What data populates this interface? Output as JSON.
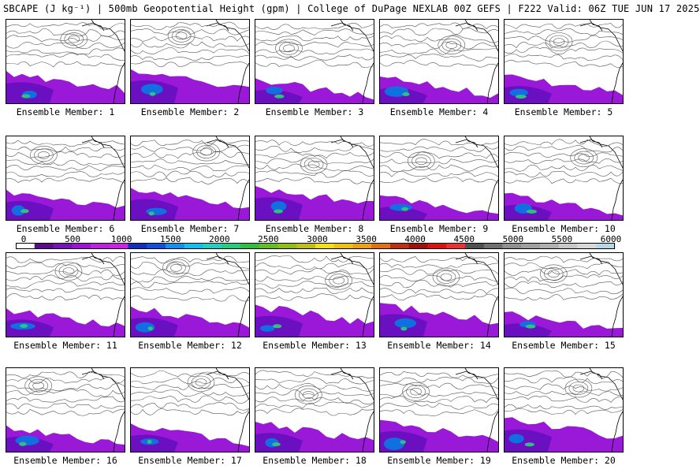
{
  "title": "SBCAPE (J kg⁻¹) | 500mb Geopotential Height (gpm) | College of DuPage NEXLAB 00Z GEFS | F222 Valid: 06Z TUE JUN 17 2025",
  "colorbar": {
    "ticks": [
      "0",
      "500",
      "1000",
      "1500",
      "2000",
      "2500",
      "3000",
      "3500",
      "4000",
      "4500",
      "5000",
      "5500",
      "6000"
    ],
    "colors": [
      "#ffffff",
      "#5a0c8c",
      "#7a10b8",
      "#a010d8",
      "#c020e0",
      "#d020e8",
      "#1030c0",
      "#1050e0",
      "#1090f0",
      "#10c0f0",
      "#20d0c0",
      "#20d080",
      "#30c040",
      "#60c020",
      "#90c010",
      "#c0c010",
      "#f0e010",
      "#f0c010",
      "#f0a010",
      "#e07010",
      "#c03010",
      "#a01010",
      "#e01010",
      "#f03030",
      "#505050",
      "#707070",
      "#909090",
      "#a0a0a0",
      "#b0b0b0",
      "#c8c8c8",
      "#d8d8d8",
      "#b0d8e8"
    ]
  },
  "members": [
    {
      "caption": "Ensemble Member: 1"
    },
    {
      "caption": "Ensemble Member: 2"
    },
    {
      "caption": "Ensemble Member: 3"
    },
    {
      "caption": "Ensemble Member: 4"
    },
    {
      "caption": "Ensemble Member: 5"
    },
    {
      "caption": "Ensemble Member: 6"
    },
    {
      "caption": "Ensemble Member: 7"
    },
    {
      "caption": "Ensemble Member: 8"
    },
    {
      "caption": "Ensemble Member: 9"
    },
    {
      "caption": "Ensemble Member: 10"
    },
    {
      "caption": "Ensemble Member: 11"
    },
    {
      "caption": "Ensemble Member: 12"
    },
    {
      "caption": "Ensemble Member: 13"
    },
    {
      "caption": "Ensemble Member: 14"
    },
    {
      "caption": "Ensemble Member: 15"
    },
    {
      "caption": "Ensemble Member: 16"
    },
    {
      "caption": "Ensemble Member: 17"
    },
    {
      "caption": "Ensemble Member: 18"
    },
    {
      "caption": "Ensemble Member: 19"
    },
    {
      "caption": "Ensemble Member: 20"
    }
  ]
}
